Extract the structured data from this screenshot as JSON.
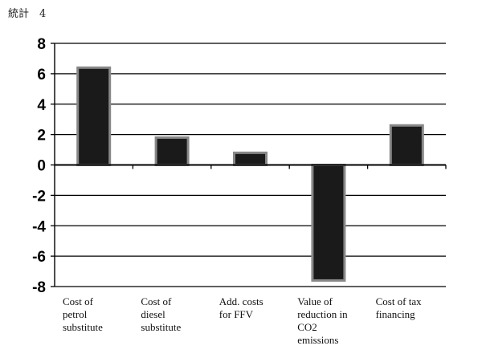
{
  "caption": "統計　4",
  "chart_data": {
    "type": "bar",
    "categories": [
      [
        "Cost of",
        "petrol",
        "substitute"
      ],
      [
        "Cost of",
        "diesel",
        "substitute"
      ],
      [
        "Add. costs",
        "for FFV"
      ],
      [
        "Value of",
        "reduction in",
        "CO2",
        "emissions"
      ],
      [
        "Cost of tax",
        "financing"
      ]
    ],
    "values": [
      6.4,
      1.8,
      0.8,
      -7.6,
      2.6
    ],
    "yticks": [
      "8",
      "6",
      "4",
      "2",
      "0",
      "-2",
      "-4",
      "-6",
      "-8"
    ],
    "ylim": [
      -8,
      8
    ],
    "grid": true,
    "bar_color": "#1a1a1a",
    "bar_edge_color": "#888888"
  }
}
